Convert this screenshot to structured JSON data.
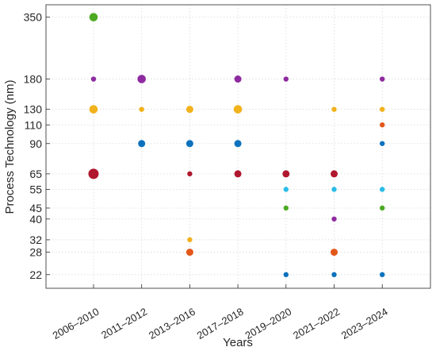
{
  "chart_data": {
    "type": "scatter",
    "xlabel": "Years",
    "ylabel": "Process Technology (nm)",
    "y_scale": "log",
    "ylim": [
      19,
      400
    ],
    "grid": true,
    "categories": [
      "2006–2010",
      "2011–2012",
      "2013–2016",
      "2017–2018",
      "2019–2020",
      "2021–2022",
      "2023–2024"
    ],
    "y_ticks": [
      22,
      28,
      32,
      40,
      45,
      55,
      65,
      90,
      110,
      130,
      180,
      350
    ],
    "points": [
      {
        "x": "2006–2010",
        "y": 350,
        "color": "#4daa22",
        "size": "large"
      },
      {
        "x": "2006–2010",
        "y": 180,
        "color": "#8e2aa0",
        "size": "small"
      },
      {
        "x": "2006–2010",
        "y": 130,
        "color": "#f2b21c",
        "size": "large"
      },
      {
        "x": "2006–2010",
        "y": 65,
        "color": "#b0172e",
        "size": "xlarge"
      },
      {
        "x": "2011–2012",
        "y": 180,
        "color": "#8e2aa0",
        "size": "large"
      },
      {
        "x": "2011–2012",
        "y": 130,
        "color": "#f2b21c",
        "size": "small"
      },
      {
        "x": "2011–2012",
        "y": 90,
        "color": "#0d72bd",
        "size": "medium"
      },
      {
        "x": "2013–2016",
        "y": 130,
        "color": "#f2b21c",
        "size": "medium"
      },
      {
        "x": "2013–2016",
        "y": 90,
        "color": "#0d72bd",
        "size": "medium"
      },
      {
        "x": "2013–2016",
        "y": 65,
        "color": "#b0172e",
        "size": "small"
      },
      {
        "x": "2013–2016",
        "y": 32,
        "color": "#f2b21c",
        "size": "small"
      },
      {
        "x": "2013–2016",
        "y": 28,
        "color": "#e4571b",
        "size": "medium"
      },
      {
        "x": "2017–2018",
        "y": 180,
        "color": "#8e2aa0",
        "size": "medium"
      },
      {
        "x": "2017–2018",
        "y": 130,
        "color": "#f2b21c",
        "size": "large"
      },
      {
        "x": "2017–2018",
        "y": 90,
        "color": "#0d72bd",
        "size": "medium"
      },
      {
        "x": "2017–2018",
        "y": 65,
        "color": "#b0172e",
        "size": "medium"
      },
      {
        "x": "2019–2020",
        "y": 180,
        "color": "#8e2aa0",
        "size": "small"
      },
      {
        "x": "2019–2020",
        "y": 65,
        "color": "#b0172e",
        "size": "medium"
      },
      {
        "x": "2019–2020",
        "y": 55,
        "color": "#29bde9",
        "size": "small"
      },
      {
        "x": "2019–2020",
        "y": 45,
        "color": "#4daa22",
        "size": "small"
      },
      {
        "x": "2019–2020",
        "y": 22,
        "color": "#0d72bd",
        "size": "small"
      },
      {
        "x": "2021–2022",
        "y": 130,
        "color": "#f2b21c",
        "size": "small"
      },
      {
        "x": "2021–2022",
        "y": 65,
        "color": "#b0172e",
        "size": "medium"
      },
      {
        "x": "2021–2022",
        "y": 55,
        "color": "#29bde9",
        "size": "small"
      },
      {
        "x": "2021–2022",
        "y": 40,
        "color": "#8e2aa0",
        "size": "small"
      },
      {
        "x": "2021–2022",
        "y": 28,
        "color": "#e4571b",
        "size": "medium"
      },
      {
        "x": "2021–2022",
        "y": 22,
        "color": "#0d72bd",
        "size": "small"
      },
      {
        "x": "2023–2024",
        "y": 180,
        "color": "#8e2aa0",
        "size": "small"
      },
      {
        "x": "2023–2024",
        "y": 130,
        "color": "#f2b21c",
        "size": "small"
      },
      {
        "x": "2023–2024",
        "y": 110,
        "color": "#e4571b",
        "size": "small"
      },
      {
        "x": "2023–2024",
        "y": 90,
        "color": "#0d72bd",
        "size": "small"
      },
      {
        "x": "2023–2024",
        "y": 55,
        "color": "#29bde9",
        "size": "small"
      },
      {
        "x": "2023–2024",
        "y": 45,
        "color": "#4daa22",
        "size": "small"
      },
      {
        "x": "2023–2024",
        "y": 22,
        "color": "#0d72bd",
        "size": "small"
      }
    ]
  }
}
